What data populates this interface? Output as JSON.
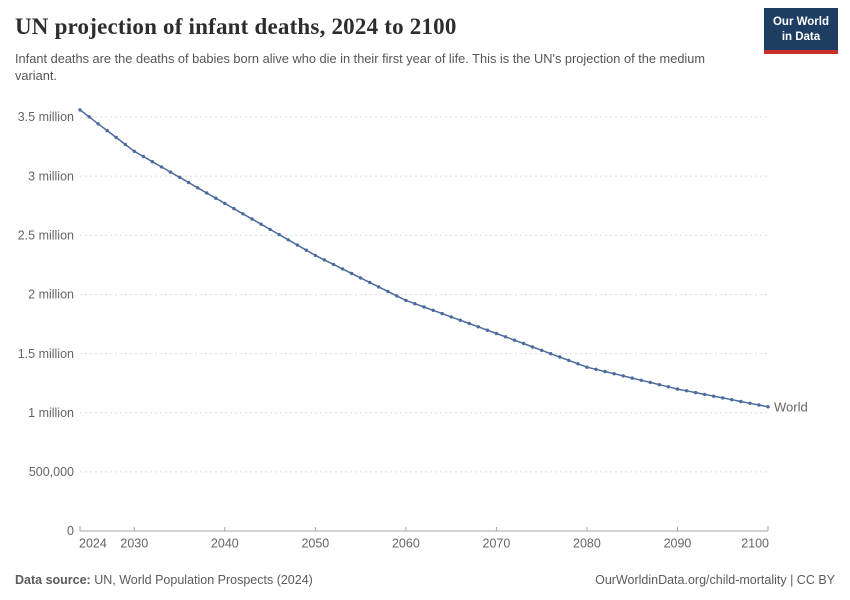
{
  "header": {
    "title": "UN projection of infant deaths, 2024 to 2100",
    "subtitle": "Infant deaths are the deaths of babies born alive who die in their first year of life. This is the UN's projection of the medium variant.",
    "logo": {
      "line1": "Our World",
      "line2": "in Data"
    }
  },
  "chart_data": {
    "type": "line",
    "title": "UN projection of infant deaths, 2024 to 2100",
    "xlabel": "",
    "ylabel": "",
    "x_range": [
      2024,
      2100
    ],
    "ylim": [
      0,
      3600000
    ],
    "grid": "horizontal-dashed",
    "legend_position": "end-of-line",
    "y_ticks": [
      {
        "value": 0,
        "label": "0"
      },
      {
        "value": 500000,
        "label": "500,000"
      },
      {
        "value": 1000000,
        "label": "1 million"
      },
      {
        "value": 1500000,
        "label": "1.5 million"
      },
      {
        "value": 2000000,
        "label": "2 million"
      },
      {
        "value": 2500000,
        "label": "2.5 million"
      },
      {
        "value": 3000000,
        "label": "3 million"
      },
      {
        "value": 3500000,
        "label": "3.5 million"
      }
    ],
    "x_ticks": [
      2024,
      2030,
      2040,
      2050,
      2060,
      2070,
      2080,
      2090,
      2100
    ],
    "series": [
      {
        "name": "World",
        "color": "#4c6a9c",
        "x": [
          2024,
          2025,
          2026,
          2027,
          2028,
          2029,
          2030,
          2031,
          2032,
          2033,
          2034,
          2035,
          2036,
          2037,
          2038,
          2039,
          2040,
          2041,
          2042,
          2043,
          2044,
          2045,
          2046,
          2047,
          2048,
          2049,
          2050,
          2051,
          2052,
          2053,
          2054,
          2055,
          2056,
          2057,
          2058,
          2059,
          2060,
          2061,
          2062,
          2063,
          2064,
          2065,
          2066,
          2067,
          2068,
          2069,
          2070,
          2071,
          2072,
          2073,
          2074,
          2075,
          2076,
          2077,
          2078,
          2079,
          2080,
          2081,
          2082,
          2083,
          2084,
          2085,
          2086,
          2087,
          2088,
          2089,
          2090,
          2091,
          2092,
          2093,
          2094,
          2095,
          2096,
          2097,
          2098,
          2099,
          2100
        ],
        "values": [
          3560000,
          3502000,
          3443000,
          3385000,
          3327000,
          3268000,
          3210000,
          3166000,
          3122000,
          3078000,
          3034000,
          2990000,
          2946000,
          2902000,
          2858000,
          2814000,
          2770000,
          2726000,
          2682000,
          2638000,
          2594000,
          2550000,
          2506000,
          2462000,
          2418000,
          2374000,
          2330000,
          2292000,
          2254000,
          2216000,
          2178000,
          2140000,
          2102000,
          2064000,
          2026000,
          1988000,
          1950000,
          1922000,
          1894000,
          1866000,
          1838000,
          1810000,
          1782000,
          1754000,
          1726000,
          1698000,
          1670000,
          1642000,
          1613000,
          1585000,
          1556000,
          1528000,
          1499000,
          1471000,
          1442000,
          1414000,
          1385000,
          1367000,
          1348000,
          1330000,
          1311000,
          1293000,
          1274000,
          1256000,
          1237000,
          1219000,
          1200000,
          1185000,
          1170000,
          1155000,
          1140000,
          1125000,
          1110000,
          1095000,
          1080000,
          1065000,
          1050000
        ]
      }
    ]
  },
  "footer": {
    "source_label": "Data source:",
    "source_text": " UN, World Population Prospects (2024)",
    "link_text": "OurWorldinData.org/child-mortality",
    "license_separator": " | ",
    "license_text": "CC BY"
  },
  "colors": {
    "line": "#4c6a9c",
    "entity_label": "#4c6a9c",
    "grid": "#dcdcdc",
    "axis": "#a5a5a5",
    "tick_label": "#666666",
    "logo_bg": "#1d3d63",
    "logo_accent": "#c9302c"
  }
}
